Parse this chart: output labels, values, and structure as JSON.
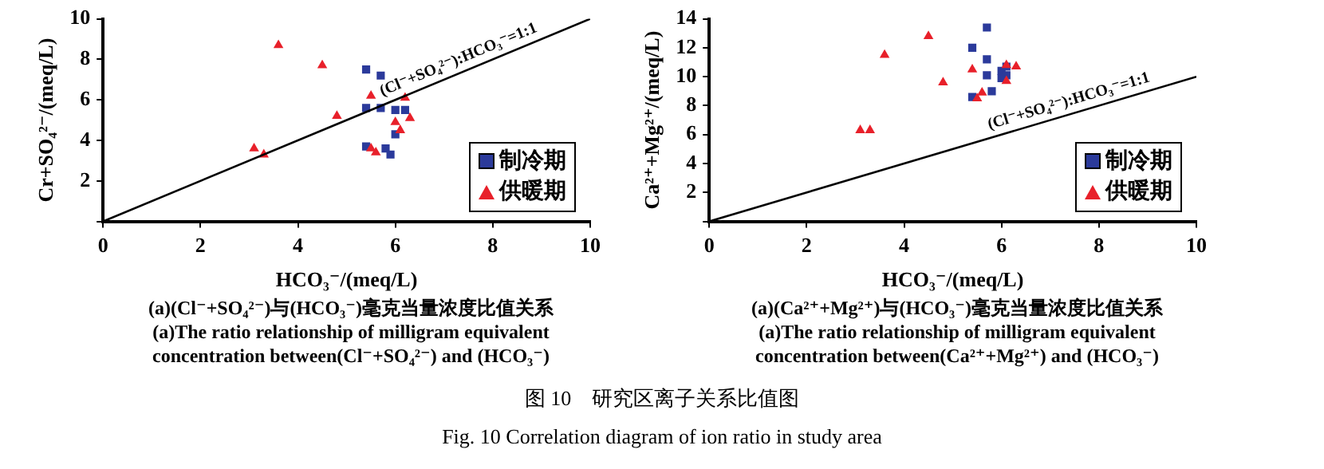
{
  "chart_data": [
    {
      "type": "scatter",
      "title": "(a)(Cl⁻+SO₄²⁻)与(HCO₃⁻)毫克当量浓度比值关系",
      "subtitle": "(a)The ratio relationship of milligram equivalent concentration between(Cl⁻+SO₄²⁻) and (HCO₃⁻)",
      "xlabel": "HCO₃⁻/(meq/L)",
      "ylabel": "Cr+SO₄²⁻/(meq/L)",
      "xlim": [
        0,
        10
      ],
      "xticks": [
        0,
        2,
        4,
        6,
        8,
        10
      ],
      "ylim": [
        0,
        10
      ],
      "yticks": [
        {
          "value": 0,
          "label": null
        },
        2,
        4,
        6,
        8,
        10
      ],
      "grid": false,
      "legend": "bottom right",
      "series": [
        {
          "name": "制冷期",
          "color": "#2b3a9b",
          "marker": "square",
          "x": [
            5.4,
            5.7,
            5.4,
            5.7,
            6.0,
            6.2,
            6.0,
            5.4,
            5.8,
            5.9
          ],
          "values": [
            7.5,
            7.2,
            5.6,
            5.6,
            5.5,
            5.5,
            4.3,
            3.7,
            3.6,
            3.3
          ]
        },
        {
          "name": "供暖期",
          "color": "#e8202a",
          "marker": "triangle",
          "x": [
            3.6,
            4.5,
            4.8,
            5.5,
            6.2,
            6.0,
            6.3,
            6.1,
            3.1,
            3.3,
            5.5,
            5.6
          ],
          "values": [
            8.7,
            7.7,
            5.2,
            6.2,
            6.1,
            4.9,
            5.1,
            4.5,
            3.6,
            3.3,
            3.6,
            3.4
          ]
        },
        {
          "type": "line",
          "color": "#000000",
          "marker": "none",
          "x": [
            0,
            10
          ],
          "values": [
            0,
            10
          ]
        }
      ],
      "annotations": [
        "(Cl⁻+SO₄²⁻):HCO₃⁻=1:1",
        "图 10　研究区离子关系比值图",
        "Fig. 10 Correlation diagram of ion ratio in study area"
      ]
    },
    {
      "type": "scatter",
      "title": "(a)(Ca²⁺+Mg²⁺)与(HCO₃⁻)毫克当量浓度比值关系",
      "subtitle": "(a)The ratio relationship of milligram equivalent concentration between(Ca²⁺+Mg²⁺) and (HCO₃⁻)",
      "xlabel": "HCO₃⁻/(meq/L)",
      "ylabel": "Ca²⁺+Mg²⁺/(meq/L)",
      "xlim": [
        0,
        10
      ],
      "xticks": [
        0,
        2,
        4,
        6,
        8,
        10
      ],
      "ylim": [
        0,
        14
      ],
      "yticks": [
        {
          "value": 0,
          "label": null
        },
        2,
        4,
        6,
        8,
        10,
        12,
        14
      ],
      "grid": false,
      "legend": "bottom right",
      "series": [
        {
          "name": "制冷期",
          "color": "#2b3a9b",
          "marker": "square",
          "x": [
            5.4,
            5.7,
            5.7,
            5.7,
            6.0,
            6.1,
            6.0,
            6.1,
            5.4,
            5.8
          ],
          "values": [
            12.0,
            13.4,
            11.2,
            10.1,
            10.4,
            10.1,
            9.9,
            10.7,
            8.6,
            9.0
          ]
        },
        {
          "name": "供暖期",
          "color": "#e8202a",
          "marker": "triangle",
          "x": [
            4.5,
            3.6,
            4.8,
            5.4,
            6.3,
            6.1,
            3.1,
            3.3,
            5.6,
            5.5,
            6.1
          ],
          "values": [
            12.8,
            11.5,
            9.6,
            10.5,
            10.7,
            9.7,
            6.3,
            6.3,
            8.9,
            8.5,
            10.8
          ]
        },
        {
          "type": "line",
          "color": "#000000",
          "marker": "none",
          "x": [
            0,
            10
          ],
          "values": [
            0,
            10
          ]
        }
      ],
      "annotations": [
        "(Cl⁻+SO₄²⁻):HCO₃⁻=1:1"
      ]
    }
  ]
}
